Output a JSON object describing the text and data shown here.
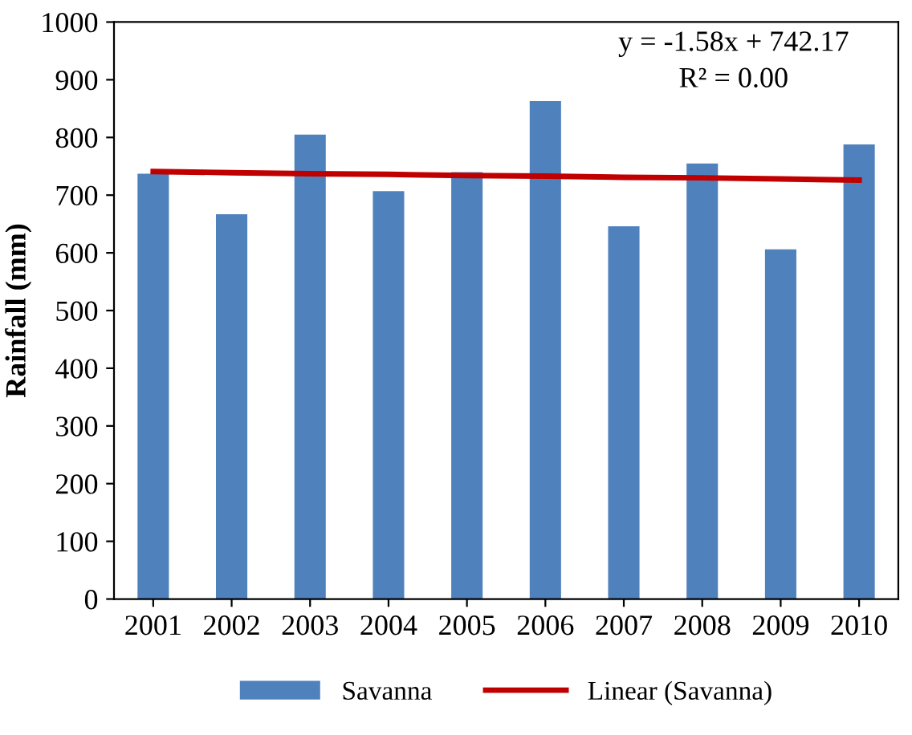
{
  "chart_data": {
    "type": "bar",
    "ylabel": "Rainfall (mm)",
    "categories": [
      "2001",
      "2002",
      "2003",
      "2004",
      "2005",
      "2006",
      "2007",
      "2008",
      "2009",
      "2010"
    ],
    "series": [
      {
        "name": "Savanna",
        "color": "#4f81bd",
        "values": [
          737,
          667,
          805,
          707,
          740,
          863,
          646,
          755,
          606,
          788
        ]
      },
      {
        "name": "Linear (Savanna)",
        "type": "line",
        "color": "#c00000",
        "values": [
          741,
          739,
          737,
          736,
          734,
          733,
          731,
          730,
          728,
          726
        ]
      }
    ],
    "ylim": [
      0,
      1000
    ],
    "yticks": [
      0,
      100,
      200,
      300,
      400,
      500,
      600,
      700,
      800,
      900,
      1000
    ],
    "annotations": [
      "y = -1.58x + 742.17\nR² = 0.00"
    ],
    "grid": false,
    "legend": "bottom"
  }
}
